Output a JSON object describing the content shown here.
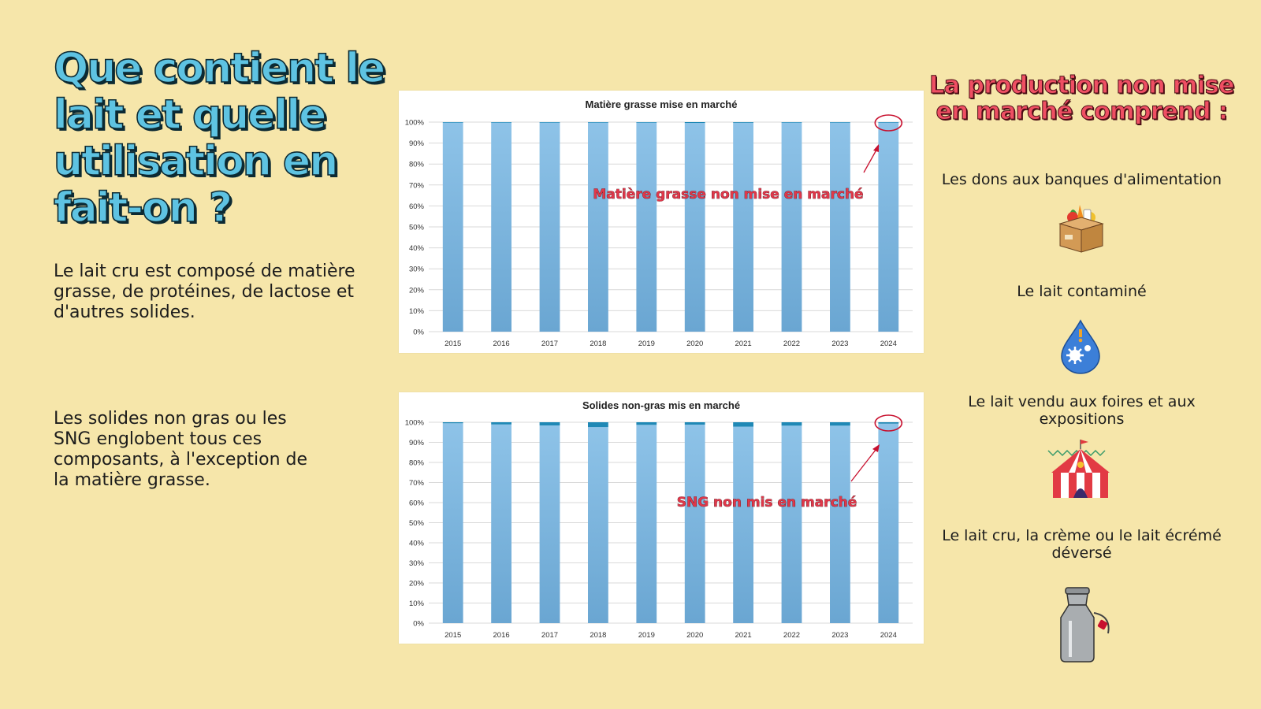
{
  "left": {
    "title": "Que contient le lait et quelle utilisation en fait-on ?",
    "intro": "Le lait cru est composé de matière grasse, de protéines, de lactose et d'autres solides.",
    "sng": "Les solides non gras ou les SNG englobent tous ces composants, à l'exception de la matière grasse."
  },
  "right": {
    "title": "La production non mise en marché comprend :",
    "items": [
      {
        "label": "Les dons aux banques d'alimentation",
        "icon": "food-donation-box-icon"
      },
      {
        "label": "Le lait contaminé",
        "icon": "contaminated-milk-drop-icon"
      },
      {
        "label": "Le lait vendu aux foires et aux expositions",
        "icon": "fair-tent-icon"
      },
      {
        "label": "Le lait cru, la crème ou le lait écrémé déversé",
        "icon": "milk-can-icon"
      }
    ]
  },
  "colors": {
    "background": "#f6e6aa",
    "bar_market": "#7fb6df",
    "bar_non_market": "#1f88b5",
    "title_blue": "#5ec3e2",
    "accent_red": "#ef4f63"
  },
  "chart_data": [
    {
      "type": "bar",
      "stacked": true,
      "title": "Matière grasse mise en marché",
      "categories": [
        "2015",
        "2016",
        "2017",
        "2018",
        "2019",
        "2020",
        "2021",
        "2022",
        "2023",
        "2024"
      ],
      "series": [
        {
          "values": [
            99.9,
            99.9,
            99.9,
            99.9,
            99.9,
            99.6,
            99.7,
            99.8,
            99.8,
            99.9
          ]
        },
        {
          "values": [
            0.1,
            0.1,
            0.1,
            0.1,
            0.1,
            0.4,
            0.3,
            0.2,
            0.2,
            0.1
          ]
        }
      ],
      "yticks": [
        "0%",
        "10%",
        "20%",
        "30%",
        "40%",
        "50%",
        "60%",
        "70%",
        "80%",
        "90%",
        "100%"
      ],
      "ylim": [
        0,
        100
      ],
      "grid": true,
      "annotation": "Matière grasse non mise en marché"
    },
    {
      "type": "bar",
      "stacked": true,
      "title": "Solides non-gras mis en marché",
      "categories": [
        "2015",
        "2016",
        "2017",
        "2018",
        "2019",
        "2020",
        "2021",
        "2022",
        "2023",
        "2024"
      ],
      "series": [
        {
          "values": [
            99.5,
            98.9,
            98.4,
            97.6,
            98.7,
            98.8,
            97.8,
            98.3,
            98.3,
            99.3
          ]
        },
        {
          "values": [
            0.5,
            1.1,
            1.6,
            2.4,
            1.3,
            1.2,
            2.2,
            1.7,
            1.7,
            0.7
          ]
        }
      ],
      "yticks": [
        "0%",
        "10%",
        "20%",
        "30%",
        "40%",
        "50%",
        "60%",
        "70%",
        "80%",
        "90%",
        "100%"
      ],
      "ylim": [
        0,
        100
      ],
      "grid": true,
      "annotation": "SNG non mis en marché"
    }
  ]
}
